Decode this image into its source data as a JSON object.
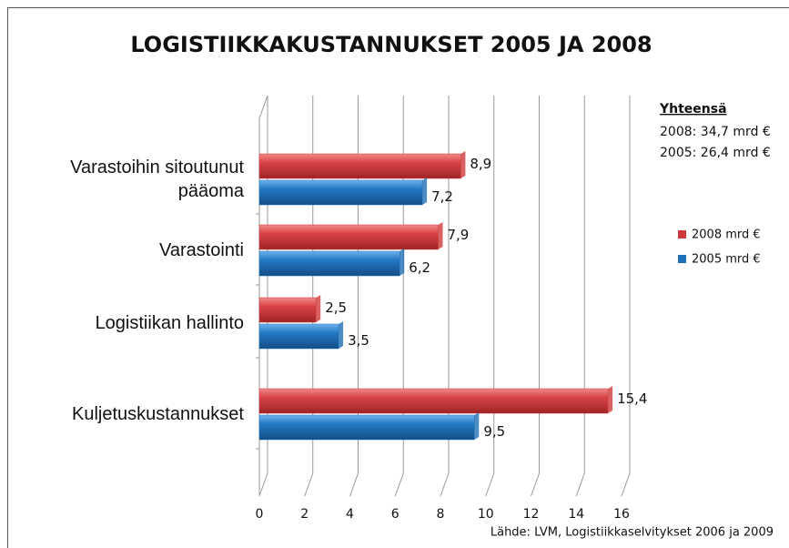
{
  "chart_data": {
    "type": "bar",
    "title": "LOGISTIIKKAKUSTANNUKSET 2005 JA 2008",
    "categories": [
      "Varastoihin sitoutunut pääoma",
      "Varastointi",
      "Logistiikan hallinto",
      "Kuljetuskustannukset"
    ],
    "series": [
      {
        "name": "2008 mrd €",
        "color": "#d0393b",
        "values": [
          8.9,
          7.9,
          2.5,
          15.4
        ],
        "value_labels": [
          "8,9",
          "7,9",
          "2,5",
          "15,4"
        ]
      },
      {
        "name": "2005 mrd €",
        "color": "#1f70b8",
        "values": [
          7.2,
          6.2,
          3.5,
          9.5
        ],
        "value_labels": [
          "7,2",
          "6,2",
          "3,5",
          "9,5"
        ]
      }
    ],
    "xlim": [
      0,
      16
    ],
    "xticks": [
      0,
      2,
      4,
      6,
      8,
      10,
      12,
      14,
      16
    ],
    "grid": true,
    "annotations": {
      "heading": "Yhteensä",
      "lines": [
        "2008:  34,7 mrd €",
        "2005:  26,4 mrd €"
      ]
    },
    "source": "Lähde:  LVM, Logistiikkaselvitykset 2006 ja 2009"
  }
}
